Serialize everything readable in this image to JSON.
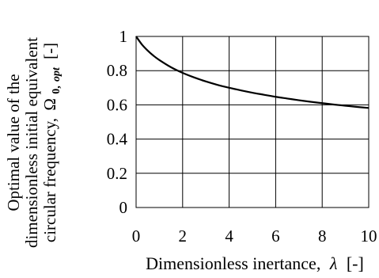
{
  "chart_data": {
    "type": "line",
    "title": "",
    "xlabel_main": "Dimensionless inertance,",
    "xlabel_symbol": "λ",
    "xlabel_unit": "[-]",
    "ylabel_lines": [
      "Optimal value of the",
      "dimensionless initial equivalent",
      "circular frequency,"
    ],
    "ylabel_symbol": "Ω",
    "ylabel_sub": "0,",
    "ylabel_sub_italic": "opt",
    "ylabel_unit": "[-]",
    "xlim": [
      0,
      10
    ],
    "ylim": [
      0,
      1
    ],
    "xticks": [
      "0",
      "2",
      "4",
      "6",
      "8",
      "10"
    ],
    "yticks": [
      "0",
      "0.2",
      "0.4",
      "0.6",
      "0.8",
      "1"
    ],
    "grid": true,
    "legend": "none",
    "series": [
      {
        "x": [
          0,
          0.25,
          0.5,
          0.75,
          1,
          1.5,
          2,
          2.5,
          3,
          3.5,
          4,
          4.5,
          5,
          5.5,
          6,
          6.5,
          7,
          7.5,
          8,
          8.5,
          9,
          9.5,
          10
        ],
        "y": [
          1.0,
          0.953,
          0.917,
          0.887,
          0.862,
          0.82,
          0.787,
          0.76,
          0.737,
          0.717,
          0.7,
          0.685,
          0.671,
          0.659,
          0.647,
          0.637,
          0.627,
          0.618,
          0.61,
          0.602,
          0.595,
          0.588,
          0.582
        ]
      }
    ],
    "line_color": "#000000"
  }
}
